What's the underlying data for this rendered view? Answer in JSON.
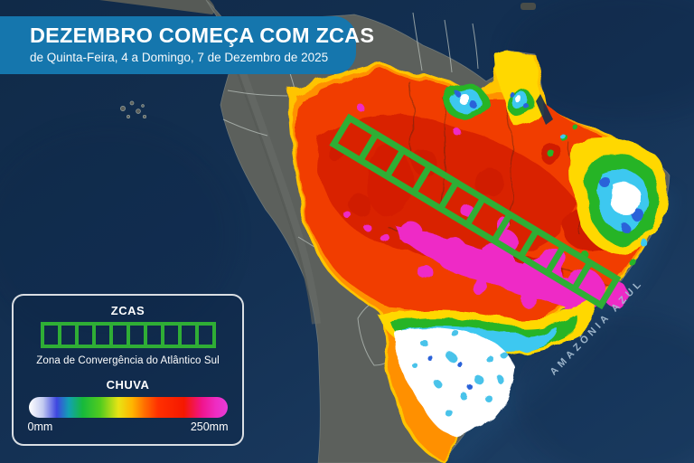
{
  "banner": {
    "title": "DEZEMBRO COMEÇA COM ZCAS",
    "subtitle": "de Quinta-Feira, 4 a Domingo, 7 de Dezembro de 2025",
    "background": "#1576ad"
  },
  "legend": {
    "zcas_label": "ZCAS",
    "zcas_cells": 10,
    "zcas_green": "#2fae35",
    "zcas_description": "Zona de Convergência do Atlântico Sul",
    "chuva_label": "CHUVA",
    "scale_min": "0mm",
    "scale_max": "250mm",
    "scale_stops": [
      "#ffffff 0%",
      "#c3cbf0 7%",
      "#3d46e0 14%",
      "#12a0b4 20%",
      "#16b93c 27%",
      "#52cc1e 36%",
      "#e8e414 45%",
      "#ffb400 52%",
      "#ff7000 58%",
      "#ff3000 65%",
      "#f51800 78%",
      "#f0148c 87%",
      "#ee2cc2 94%",
      "#e83cd8 100%"
    ]
  },
  "map": {
    "ocean_label": "AMAZÔNIA AZUL",
    "colors": {
      "ocean": "#13304f",
      "land": "#5c605c",
      "country_border": "#b9c1bc",
      "rain_yellow": "#ffd800",
      "rain_orange": "#ff9000",
      "rain_red": "#f13c00",
      "rain_dark_red": "#c81300",
      "rain_magenta": "#ee2ac6",
      "rain_cyan": "#3cc8f0",
      "rain_white": "#ffffff",
      "zcas_green": "#2fae35"
    }
  }
}
